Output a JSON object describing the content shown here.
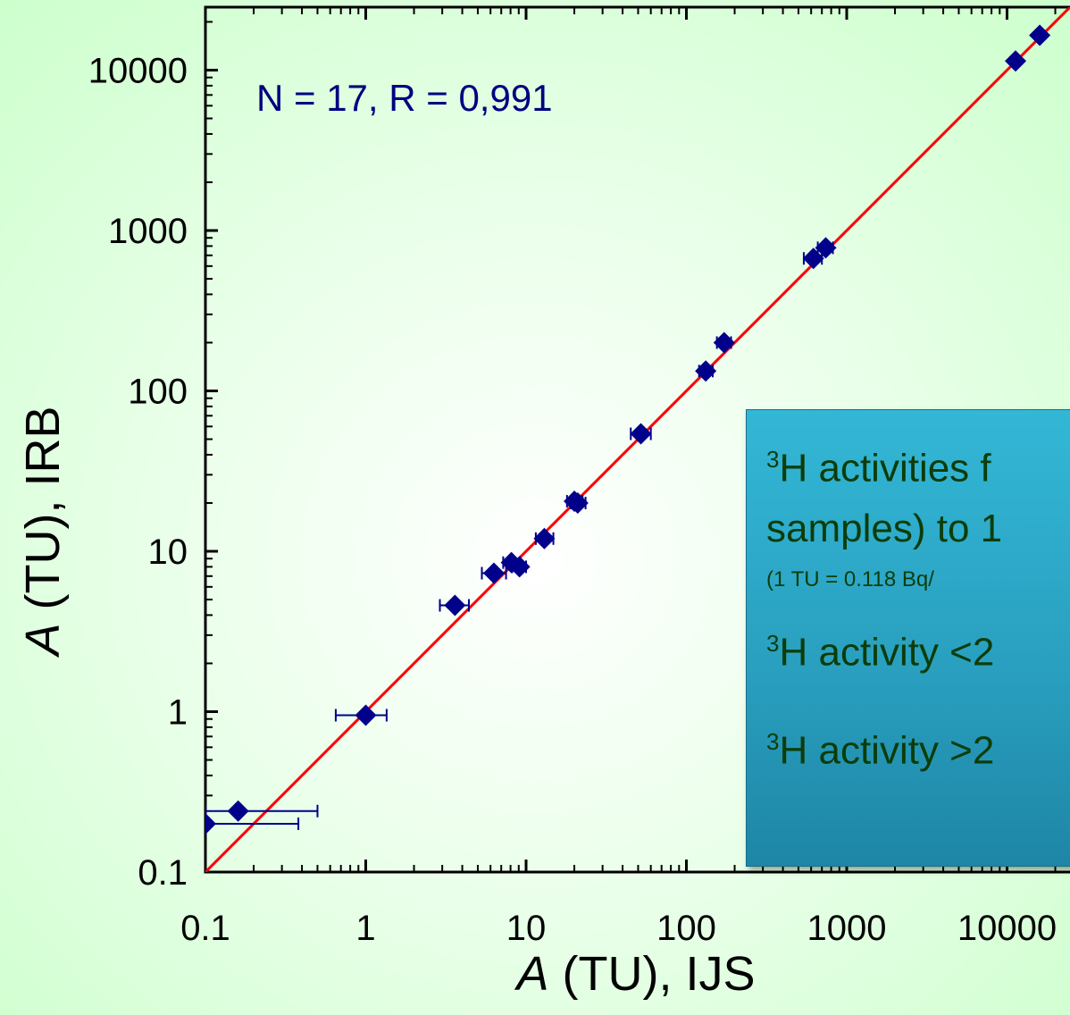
{
  "chart_data": {
    "type": "scatter",
    "xlabel": "A (TU), IJS",
    "ylabel": "A (TU), IRB",
    "xlabel_italic": "A",
    "xlabel_rest": " (TU), IJS",
    "ylabel_italic": "A",
    "ylabel_rest": " (TU), IRB",
    "x_scale": "log",
    "y_scale": "log",
    "xlim": [
      0.1,
      25000
    ],
    "ylim": [
      0.1,
      20000
    ],
    "x_ticks": [
      "0.1",
      "1",
      "10",
      "100",
      "1000",
      "10000"
    ],
    "y_ticks": [
      "0.1",
      "1",
      "10",
      "100",
      "1000",
      "10000"
    ],
    "annotation": "N = 17, R = 0,991",
    "colors": {
      "points": "#00008b",
      "fit_line": "#ff0000",
      "background": "#ccffcc"
    },
    "fit_line": {
      "from": [
        0.1,
        0.1
      ],
      "to": [
        25000,
        25000
      ]
    },
    "series": [
      {
        "marker": "diamond",
        "points": [
          {
            "x": 0.1,
            "y": 0.2,
            "x_err": [
              0.1,
              0.38
            ]
          },
          {
            "x": 0.16,
            "y": 0.24,
            "x_err": [
              0.1,
              0.5
            ]
          },
          {
            "x": 1.0,
            "y": 0.95,
            "x_err": [
              0.65,
              1.35
            ]
          },
          {
            "x": 3.6,
            "y": 4.6,
            "x_err": [
              2.9,
              4.4
            ]
          },
          {
            "x": 6.3,
            "y": 7.3,
            "x_err": [
              5.3,
              7.5
            ]
          },
          {
            "x": 8.1,
            "y": 8.5,
            "x_err": [
              7.2,
              9.2
            ]
          },
          {
            "x": 9.1,
            "y": 8.0,
            "x_err": [
              8.2,
              10.0
            ]
          },
          {
            "x": 13.0,
            "y": 12.0,
            "x_err": [
              11.5,
              14.8
            ]
          },
          {
            "x": 20.0,
            "y": 20.5,
            "x_err": [
              18.0,
              22.5
            ]
          },
          {
            "x": 21.0,
            "y": 20.0,
            "x_err": [
              19.0,
              23.5
            ]
          },
          {
            "x": 52.0,
            "y": 54.0,
            "x_err": [
              45.0,
              60.0
            ]
          },
          {
            "x": 132.0,
            "y": 133.0,
            "x_err": [
              120.0,
              146.0
            ]
          },
          {
            "x": 172.0,
            "y": 200.0,
            "x_err": [
              155.0,
              190.0
            ]
          },
          {
            "x": 620.0,
            "y": 670.0,
            "x_err": [
              540.0,
              700.0
            ]
          },
          {
            "x": 740.0,
            "y": 780.0,
            "x_err": [
              660.0,
              820.0
            ]
          },
          {
            "x": 11300.0,
            "y": 11400.0,
            "x_err": [
              11300.0,
              11300.0
            ]
          },
          {
            "x": 16000.0,
            "y": 16500.0,
            "x_err": [
              16000.0,
              16000.0
            ]
          }
        ]
      }
    ]
  },
  "info_box": {
    "line1": "H activities f",
    "line2": "samples) to 1",
    "note": "(1 TU = 0.118 Bq/",
    "line3": "H activity <2",
    "line4": "H activity >2",
    "sup": "3",
    "background": "#2aa0c0"
  }
}
